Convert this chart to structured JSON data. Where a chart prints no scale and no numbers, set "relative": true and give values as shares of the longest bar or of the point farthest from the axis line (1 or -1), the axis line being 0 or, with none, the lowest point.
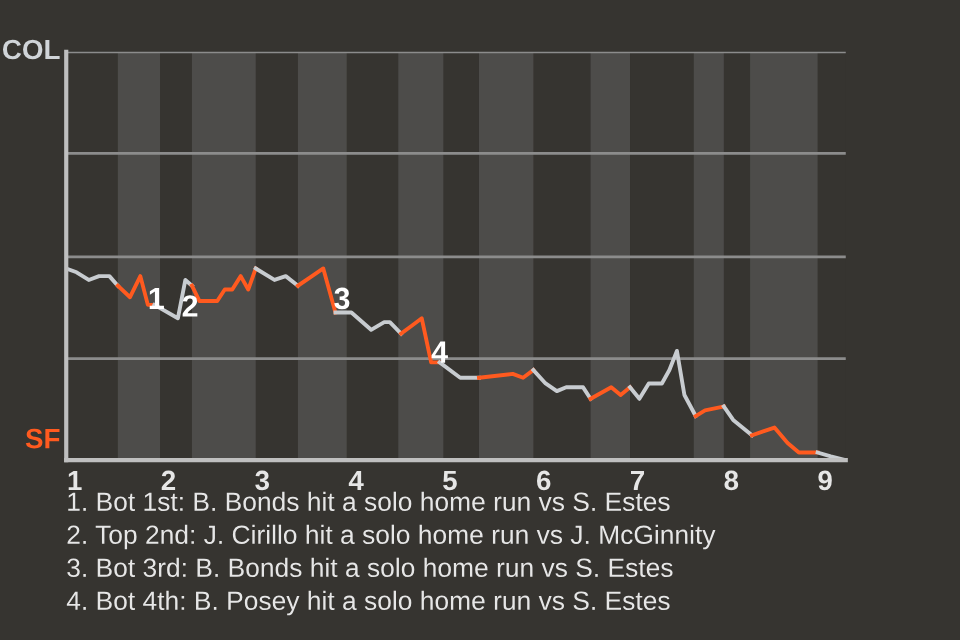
{
  "chart_data": {
    "type": "line",
    "relative": true,
    "xlim": [
      0.91,
      9.22
    ],
    "xticks": [
      1,
      2,
      3,
      4,
      5,
      6,
      7,
      8,
      9
    ],
    "ref_lines": [
      {
        "axis": "y",
        "value": 0.53,
        "color": "#8c8c8c"
      },
      {
        "axis": "y",
        "value": 1.06,
        "color": "#8c8c8c"
      },
      {
        "axis": "y",
        "value": 1.6,
        "color": "#8c8c8c"
      },
      {
        "axis": "y",
        "value": 2.13,
        "color": "#8c8c8c"
      }
    ],
    "legend": false,
    "line_style": "solid",
    "series": [
      {
        "color": "#c8ccd0",
        "x": [
          0.91,
          1.02,
          1.15,
          1.26,
          1.37,
          1.46
        ],
        "values": [
          1,
          0.98,
          0.94,
          0.96,
          0.96,
          0.91
        ]
      },
      {
        "color": "#ff5a1f",
        "x": [
          1.46,
          1.59,
          1.7,
          1.78,
          1.85
        ],
        "values": [
          0.91,
          0.85,
          0.96,
          0.81,
          0.81
        ]
      },
      {
        "color": "#c8ccd0",
        "x": [
          1.85,
          2.1,
          2.18,
          2.25
        ],
        "values": [
          0.81,
          0.74,
          0.94,
          0.91
        ]
      },
      {
        "color": "#ff5a1f",
        "x": [
          2.25,
          2.33,
          2.52,
          2.6,
          2.68,
          2.77,
          2.85,
          2.93
        ],
        "values": [
          0.91,
          0.83,
          0.83,
          0.89,
          0.89,
          0.96,
          0.89,
          1
        ]
      },
      {
        "color": "#c8ccd0",
        "x": [
          2.93,
          3.13,
          3.25,
          3.38
        ],
        "values": [
          1,
          0.94,
          0.96,
          0.91
        ]
      },
      {
        "color": "#ff5a1f",
        "x": [
          3.38,
          3.53,
          3.65,
          3.78
        ],
        "values": [
          0.91,
          0.96,
          1,
          0.77
        ]
      },
      {
        "color": "#c8ccd0",
        "x": [
          3.78,
          3.95,
          4.16,
          4.3,
          4.36,
          4.48
        ],
        "values": [
          0.77,
          0.77,
          0.68,
          0.72,
          0.72,
          0.66
        ]
      },
      {
        "color": "#ff5a1f",
        "x": [
          4.48,
          4.59,
          4.7,
          4.8,
          4.89
        ],
        "values": [
          0.66,
          0.7,
          0.74,
          0.51,
          0.51
        ]
      },
      {
        "color": "#c8ccd0",
        "x": [
          4.89,
          5.11,
          5.31
        ],
        "values": [
          0.51,
          0.43,
          0.43
        ]
      },
      {
        "color": "#ff5a1f",
        "x": [
          5.31,
          5.67,
          5.78,
          5.89
        ],
        "values": [
          0.43,
          0.45,
          0.43,
          0.47
        ]
      },
      {
        "color": "#c8ccd0",
        "x": [
          5.89,
          6.02,
          6.14,
          6.24,
          6.42,
          6.5
        ],
        "values": [
          0.47,
          0.4,
          0.36,
          0.38,
          0.38,
          0.32
        ]
      },
      {
        "color": "#ff5a1f",
        "x": [
          6.5,
          6.72,
          6.82,
          6.92
        ],
        "values": [
          0.32,
          0.38,
          0.34,
          0.38
        ]
      },
      {
        "color": "#c8ccd0",
        "x": [
          6.92,
          7.02,
          7.12,
          7.26,
          7.34,
          7.42,
          7.5,
          7.62
        ],
        "values": [
          0.38,
          0.32,
          0.4,
          0.4,
          0.47,
          0.57,
          0.34,
          0.23
        ]
      },
      {
        "color": "#ff5a1f",
        "x": [
          7.62,
          7.72,
          7.92
        ],
        "values": [
          0.23,
          0.26,
          0.28
        ]
      },
      {
        "color": "#c8ccd0",
        "x": [
          7.92,
          8.02,
          8.22
        ],
        "values": [
          0.28,
          0.21,
          0.13
        ]
      },
      {
        "color": "#ff5a1f",
        "x": [
          8.22,
          8.34,
          8.46,
          8.6,
          8.72,
          8.92
        ],
        "values": [
          0.13,
          0.15,
          0.17,
          0.09,
          0.04,
          0.04
        ]
      },
      {
        "color": "#c8ccd0",
        "x": [
          8.92,
          9.06,
          9.22
        ],
        "values": [
          0.04,
          0.02,
          0
        ]
      }
    ],
    "bands": [
      {
        "axis": "x",
        "from": 1.46,
        "to": 1.91,
        "color": "#4d4c4a"
      },
      {
        "axis": "x",
        "from": 2.25,
        "to": 2.93,
        "color": "#4d4c4a"
      },
      {
        "axis": "x",
        "from": 3.38,
        "to": 3.9,
        "color": "#4d4c4a"
      },
      {
        "axis": "x",
        "from": 4.45,
        "to": 4.93,
        "color": "#4d4c4a"
      },
      {
        "axis": "x",
        "from": 5.31,
        "to": 5.89,
        "color": "#4d4c4a"
      },
      {
        "axis": "x",
        "from": 6.5,
        "to": 6.92,
        "color": "#4d4c4a"
      },
      {
        "axis": "x",
        "from": 7.6,
        "to": 7.92,
        "color": "#4d4c4a"
      },
      {
        "axis": "x",
        "from": 8.2,
        "to": 8.92,
        "color": "#4d4c4a"
      }
    ],
    "annotations": [
      {
        "text": "1",
        "x": 1.87,
        "y": 0.83
      },
      {
        "text": "2",
        "x": 2.23,
        "y": 0.79
      },
      {
        "text": "3",
        "x": 3.85,
        "y": 0.83
      },
      {
        "text": "4",
        "x": 4.89,
        "y": 0.55
      },
      "COL",
      "SF",
      "1. Bot 1st: B. Bonds hit a solo home run vs S. Estes",
      "2. Top 2nd: J. Cirillo hit a solo home run vs J. McGinnity",
      "3. Bot 3rd: B. Bonds hit a solo home run vs S. Estes",
      "4. Bot 4th: B. Posey hit a solo home run vs S. Estes"
    ]
  }
}
